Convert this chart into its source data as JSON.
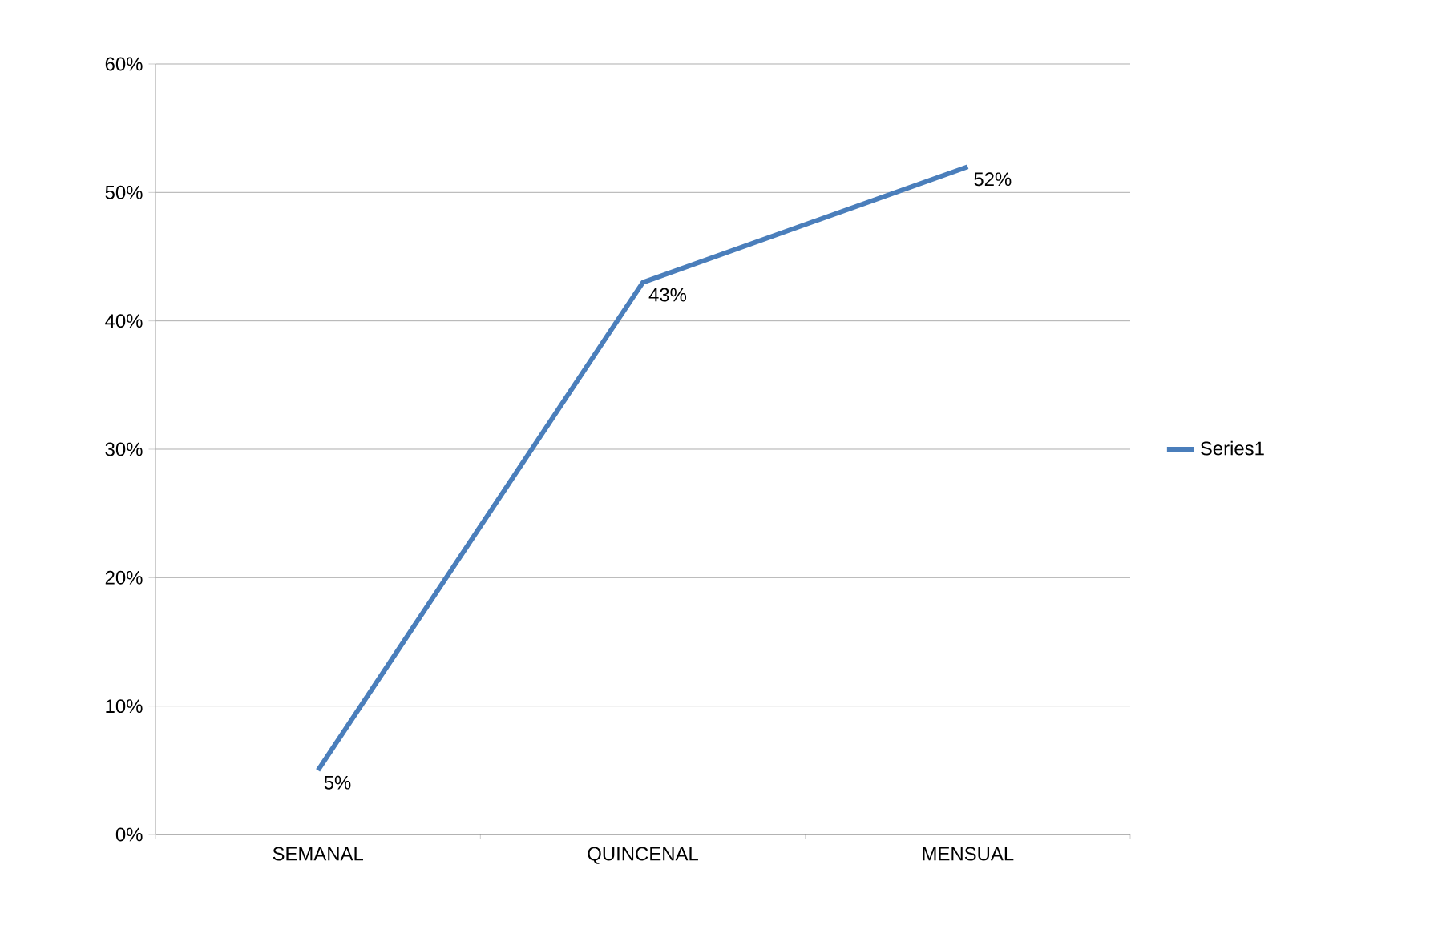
{
  "chart_data": {
    "type": "line",
    "categories": [
      "SEMANAL",
      "QUINCENAL",
      "MENSUAL"
    ],
    "series": [
      {
        "name": "Series1",
        "color": "#4a7ebb",
        "values": [
          5,
          43,
          52
        ],
        "value_labels": [
          "5%",
          "43%",
          "52%"
        ]
      }
    ],
    "ylim": [
      0,
      60
    ],
    "yticks": [
      {
        "value": 0,
        "label": "0%"
      },
      {
        "value": 10,
        "label": "10%"
      },
      {
        "value": 20,
        "label": "20%"
      },
      {
        "value": 30,
        "label": "30%"
      },
      {
        "value": 40,
        "label": "40%"
      },
      {
        "value": 50,
        "label": "50%"
      },
      {
        "value": 60,
        "label": "60%"
      }
    ],
    "grid": "y",
    "legend": "right"
  }
}
